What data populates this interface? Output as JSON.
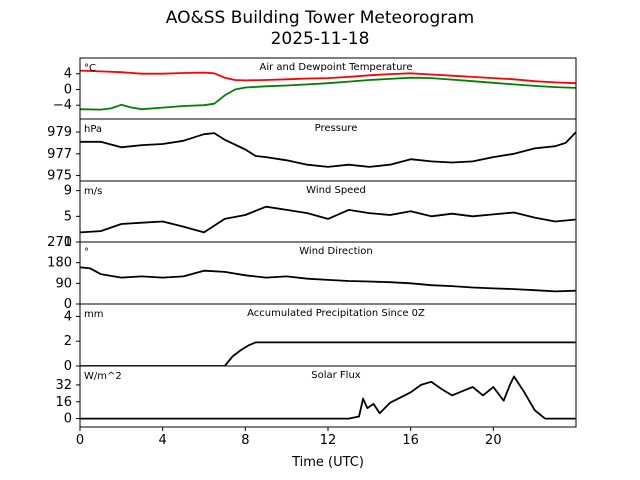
{
  "title": "AO&SS Building Tower Meteorogram",
  "date": "2025-11-18",
  "x_axis": {
    "label": "Time (UTC)",
    "range": [
      0,
      24
    ],
    "ticks": [
      0,
      4,
      8,
      12,
      16,
      20
    ]
  },
  "chart_data": [
    {
      "type": "line",
      "title": "Air and Dewpoint Temperature",
      "unit": "°C",
      "ylim": [
        -7.5,
        8
      ],
      "yticks": [
        -4,
        0,
        4
      ],
      "ytick_labels": [
        "−4",
        "0",
        "4"
      ],
      "series": [
        {
          "name": "Air Temperature",
          "color": "#ff0000",
          "x": [
            0,
            1,
            2,
            3,
            4,
            5,
            6,
            6.5,
            7,
            7.5,
            8,
            9,
            10,
            11,
            12,
            13,
            14,
            15,
            16,
            17,
            18,
            19,
            20,
            21,
            22,
            23,
            24
          ],
          "y": [
            4.8,
            4.6,
            4.4,
            4.0,
            4.0,
            4.2,
            4.3,
            4.1,
            3.0,
            2.4,
            2.3,
            2.4,
            2.6,
            2.8,
            2.9,
            3.2,
            3.6,
            3.9,
            4.1,
            3.8,
            3.5,
            3.2,
            2.9,
            2.6,
            2.1,
            1.8,
            1.6
          ]
        },
        {
          "name": "Dewpoint",
          "color": "#008000",
          "x": [
            0,
            1,
            1.5,
            2,
            2.5,
            3,
            4,
            5,
            6,
            6.5,
            7,
            7.5,
            8,
            9,
            10,
            11,
            12,
            13,
            14,
            15,
            16,
            17,
            18,
            19,
            20,
            21,
            22,
            23,
            24
          ],
          "y": [
            -5.0,
            -5.1,
            -4.8,
            -3.9,
            -4.6,
            -5.0,
            -4.6,
            -4.2,
            -4.0,
            -3.6,
            -1.5,
            0.0,
            0.5,
            0.8,
            1.0,
            1.3,
            1.6,
            2.0,
            2.4,
            2.7,
            3.0,
            2.9,
            2.5,
            2.1,
            1.7,
            1.3,
            0.9,
            0.6,
            0.4
          ]
        }
      ]
    },
    {
      "type": "line",
      "title": "Pressure",
      "unit": "hPa",
      "ylim": [
        974.5,
        980.2
      ],
      "yticks": [
        975,
        977,
        979
      ],
      "ytick_labels": [
        "975",
        "977",
        "979"
      ],
      "series": [
        {
          "name": "Pressure",
          "color": "#000000",
          "x": [
            0,
            1,
            2,
            3,
            4,
            5,
            6,
            6.5,
            7,
            8,
            8.5,
            9,
            10,
            11,
            12,
            13,
            14,
            15,
            16,
            17,
            18,
            19,
            20,
            21,
            22,
            23,
            23.5,
            24
          ],
          "y": [
            978.1,
            978.1,
            977.6,
            977.8,
            977.9,
            978.2,
            978.8,
            978.9,
            978.3,
            977.4,
            976.8,
            976.7,
            976.4,
            976.0,
            975.8,
            976.0,
            975.8,
            976.0,
            976.5,
            976.3,
            976.2,
            976.3,
            976.7,
            977.0,
            977.5,
            977.7,
            978.0,
            979.0
          ]
        }
      ]
    },
    {
      "type": "line",
      "title": "Wind Speed",
      "unit": "m/s",
      "ylim": [
        1,
        10.5
      ],
      "yticks": [
        1,
        5,
        9
      ],
      "ytick_labels": [
        "1",
        "5",
        "9"
      ],
      "series": [
        {
          "name": "Wind Speed",
          "color": "#000000",
          "x": [
            0,
            1,
            2,
            3,
            4,
            5,
            6,
            7,
            8,
            9,
            10,
            11,
            12,
            13,
            14,
            15,
            16,
            17,
            18,
            19,
            20,
            21,
            22,
            23,
            24
          ],
          "y": [
            2.5,
            2.7,
            3.8,
            4.0,
            4.2,
            3.4,
            2.5,
            4.6,
            5.2,
            6.5,
            6.0,
            5.5,
            4.6,
            6.0,
            5.5,
            5.2,
            5.8,
            5.0,
            5.4,
            5.0,
            5.3,
            5.6,
            4.8,
            4.2,
            4.5
          ]
        }
      ]
    },
    {
      "type": "line",
      "title": "Wind Direction",
      "unit": "°",
      "ylim": [
        0,
        270
      ],
      "yticks": [
        0,
        90,
        180,
        270
      ],
      "ytick_labels": [
        "0",
        "90",
        "180",
        "270"
      ],
      "series": [
        {
          "name": "Wind Direction",
          "color": "#000000",
          "x": [
            0,
            0.5,
            1,
            2,
            3,
            4,
            5,
            6,
            7,
            8,
            9,
            10,
            11,
            12,
            13,
            14,
            15,
            16,
            17,
            18,
            19,
            20,
            21,
            22,
            23,
            24
          ],
          "y": [
            160,
            155,
            130,
            115,
            120,
            115,
            120,
            145,
            140,
            125,
            115,
            120,
            110,
            105,
            100,
            98,
            95,
            90,
            82,
            78,
            72,
            68,
            65,
            60,
            55,
            58
          ]
        }
      ]
    },
    {
      "type": "line",
      "title": "Accumulated Precipitation Since 0Z",
      "unit": "mm",
      "ylim": [
        0,
        5
      ],
      "yticks": [
        0,
        2,
        4
      ],
      "ytick_labels": [
        "0",
        "2",
        "4"
      ],
      "series": [
        {
          "name": "Accumulated Precipitation",
          "color": "#000000",
          "x": [
            0,
            7.0,
            7.4,
            7.8,
            8.2,
            8.5,
            24
          ],
          "y": [
            0,
            0,
            0.8,
            1.3,
            1.7,
            1.9,
            1.9
          ]
        }
      ]
    },
    {
      "type": "line",
      "title": "Solar Flux",
      "unit": "W/m^2",
      "ylim": [
        -8,
        50
      ],
      "yticks": [
        0,
        16,
        32
      ],
      "ytick_labels": [
        "0",
        "16",
        "32"
      ],
      "series": [
        {
          "name": "Solar Flux",
          "color": "#000000",
          "x": [
            0,
            7,
            8,
            9,
            10,
            11,
            12,
            13,
            13.5,
            13.7,
            13.9,
            14.2,
            14.5,
            15,
            15.5,
            16,
            16.5,
            17,
            17.5,
            18,
            18.5,
            19,
            19.5,
            20,
            20.5,
            20.8,
            21,
            21.5,
            22,
            22.5,
            24
          ],
          "y": [
            0,
            0,
            0,
            0,
            0,
            0,
            0,
            0,
            2,
            19,
            10,
            14,
            5,
            15,
            20,
            25,
            32,
            35,
            28,
            22,
            26,
            30,
            22,
            30,
            17,
            32,
            40,
            25,
            8,
            0,
            0
          ]
        }
      ]
    }
  ]
}
